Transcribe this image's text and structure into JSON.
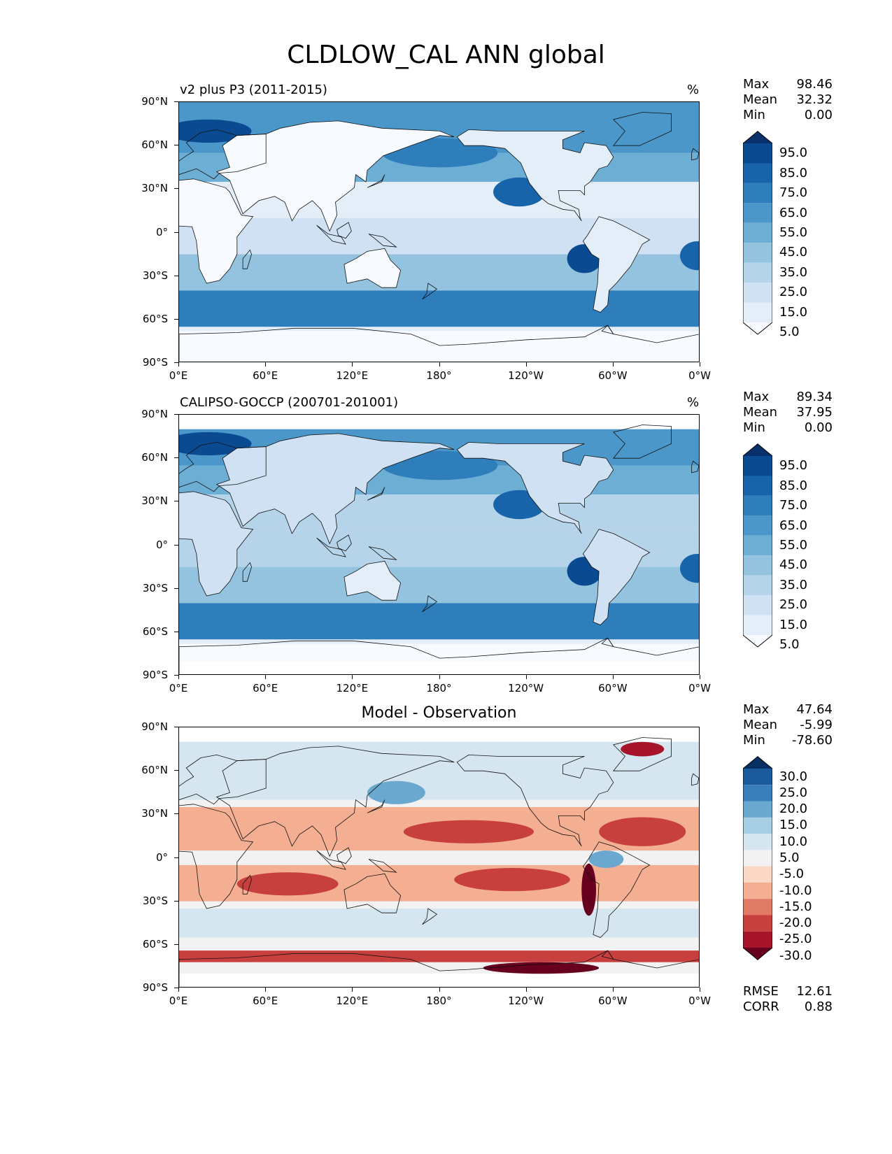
{
  "title": "CLDLOW_CAL ANN global",
  "panels": [
    {
      "name": "model",
      "left_title": "v2 plus P3 (2011-2015)",
      "center_title": "",
      "units": "%",
      "stats": [
        [
          "Max",
          "98.46"
        ],
        [
          "Mean",
          "32.32"
        ],
        [
          "Min",
          "0.00"
        ]
      ],
      "cbar_labels": [
        "95.0",
        "85.0",
        "75.0",
        "65.0",
        "55.0",
        "45.0",
        "35.0",
        "25.0",
        "15.0",
        "5.0"
      ],
      "extra_stats": []
    },
    {
      "name": "obs",
      "left_title": "CALIPSO-GOCCP (200701-201001)",
      "center_title": "",
      "units": "%",
      "stats": [
        [
          "Max",
          "89.34"
        ],
        [
          "Mean",
          "37.95"
        ],
        [
          "Min",
          "0.00"
        ]
      ],
      "cbar_labels": [
        "95.0",
        "85.0",
        "75.0",
        "65.0",
        "55.0",
        "45.0",
        "35.0",
        "25.0",
        "15.0",
        "5.0"
      ],
      "extra_stats": []
    },
    {
      "name": "diff",
      "left_title": "",
      "center_title": "Model - Observation",
      "units": "",
      "stats": [
        [
          "Max",
          "47.64"
        ],
        [
          "Mean",
          "-5.99"
        ],
        [
          "Min",
          "-78.60"
        ]
      ],
      "cbar_labels": [
        "30.0",
        "25.0",
        "20.0",
        "15.0",
        "10.0",
        "5.0",
        "-5.0",
        "-10.0",
        "-15.0",
        "-20.0",
        "-25.0",
        "-30.0"
      ],
      "extra_stats": [
        [
          "RMSE",
          "12.61"
        ],
        [
          "CORR",
          "0.88"
        ]
      ]
    }
  ],
  "lat_ticks": [
    "90°N",
    "60°N",
    "30°N",
    "0°",
    "30°S",
    "60°S",
    "90°S"
  ],
  "lon_ticks": [
    "0°E",
    "60°E",
    "120°E",
    "180°",
    "120°W",
    "60°W",
    "0°W"
  ],
  "colors": {
    "blues": [
      "#f7fbff",
      "#e3eef9",
      "#cfe1f2",
      "#b5d4e9",
      "#93c3df",
      "#6daed5",
      "#4b97c9",
      "#2f7ebc",
      "#1864aa",
      "#0a4a90",
      "#08306b"
    ],
    "rdbu": [
      "#67001f",
      "#a51429",
      "#c7403e",
      "#e07b67",
      "#f4ae91",
      "#fbd8c4",
      "#f2f2f2",
      "#d6e6f1",
      "#a7cfe4",
      "#6aa8d0",
      "#3a7fb9",
      "#1b5a9c",
      "#053061"
    ]
  }
}
